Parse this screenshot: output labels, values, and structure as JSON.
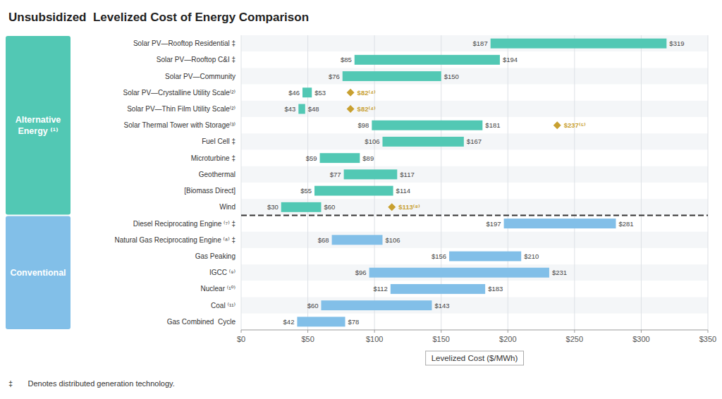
{
  "chart_data": {
    "type": "bar",
    "orientation": "horizontal",
    "title": "Unsubsidized  Levelized Cost of Energy Comparison",
    "x_label": "Levelized Cost ($/MWh)",
    "annotations": [
      "‡       Denotes distributed generation technology."
    ],
    "grid": true,
    "data_labels": true,
    "xlim": [
      0,
      350
    ],
    "xticks": [
      {
        "value": 0,
        "label": "$0"
      },
      {
        "value": 50,
        "label": "$50"
      },
      {
        "value": 100,
        "label": "$100"
      },
      {
        "value": 150,
        "label": "$150"
      },
      {
        "value": 200,
        "label": "$200"
      },
      {
        "value": 250,
        "label": "$250"
      },
      {
        "value": 300,
        "label": "$300"
      },
      {
        "value": 350,
        "label": "$350"
      }
    ],
    "categories": [
      "Solar PV—Rooftop Residential ‡",
      "Solar PV—Rooftop C&I ‡",
      "Solar PV—Community",
      "Solar PV—Crystalline Utility Scale⁽²⁾",
      "Solar PV—Thin Film Utility Scale⁽²⁾",
      "Solar Thermal Tower with Storage⁽³⁾",
      "Fuel Cell ‡",
      "Microturbine ‡",
      "Geothermal",
      "[Biomass Direct]",
      "Wind",
      "Diesel Reciprocating Engine ⁽⁷⁾ ‡",
      "Natural Gas Reciprocating Engine ⁽⁸⁾ ‡",
      "Gas Peaking",
      "IGCC ⁽⁹⁾",
      "Nuclear ⁽¹⁰⁾",
      "Coal ⁽¹¹⁾",
      "Gas Combined  Cycle"
    ],
    "series": [
      {
        "name": "Alternative\nEnergy ⁽¹⁾",
        "type": "range_bar",
        "color": "#52c8b4",
        "low": [
          187,
          85,
          76,
          46,
          43,
          98,
          106,
          59,
          77,
          55,
          30,
          null,
          null,
          null,
          null,
          null,
          null,
          null
        ],
        "high": [
          319,
          194,
          150,
          53,
          48,
          181,
          167,
          89,
          117,
          114,
          60,
          null,
          null,
          null,
          null,
          null,
          null,
          null
        ],
        "low_labels": [
          "$187",
          "$85",
          "$76",
          "$46",
          "$43",
          "$98",
          "$106",
          "$59",
          "$77",
          "$55",
          "$30",
          null,
          null,
          null,
          null,
          null,
          null,
          null
        ],
        "high_labels": [
          "$319",
          "$194",
          "$150",
          "$53",
          "$48",
          "$181",
          "$167",
          "$89",
          "$117",
          "$114",
          "$60",
          null,
          null,
          null,
          null,
          null,
          null,
          null
        ]
      },
      {
        "name": "Conventional",
        "type": "range_bar",
        "color": "#82bfe8",
        "low": [
          null,
          null,
          null,
          null,
          null,
          null,
          null,
          null,
          null,
          null,
          null,
          197,
          68,
          156,
          96,
          112,
          60,
          42
        ],
        "high": [
          null,
          null,
          null,
          null,
          null,
          null,
          null,
          null,
          null,
          null,
          null,
          281,
          106,
          210,
          231,
          183,
          143,
          78
        ],
        "low_labels": [
          null,
          null,
          null,
          null,
          null,
          null,
          null,
          null,
          null,
          null,
          null,
          "$197",
          "$68",
          "$156",
          "$96",
          "$112",
          "$60",
          "$42"
        ],
        "high_labels": [
          null,
          null,
          null,
          null,
          null,
          null,
          null,
          null,
          null,
          null,
          null,
          "$281",
          "$106",
          "$210",
          "$231",
          "$183",
          "$143",
          "$78"
        ]
      },
      {
        "type": "scatter",
        "marker": "diamond",
        "color": "#c8a030",
        "values": [
          null,
          null,
          null,
          82,
          82,
          237,
          null,
          null,
          null,
          null,
          113,
          null,
          null,
          null,
          null,
          null,
          null,
          null
        ],
        "value_labels": [
          null,
          null,
          null,
          "$82⁽⁴⁾",
          "$82⁽⁴⁾",
          "$237⁽⁵⁾",
          null,
          null,
          null,
          null,
          "$113⁽⁸⁾",
          null,
          null,
          null,
          null,
          null,
          null,
          null
        ]
      }
    ]
  }
}
